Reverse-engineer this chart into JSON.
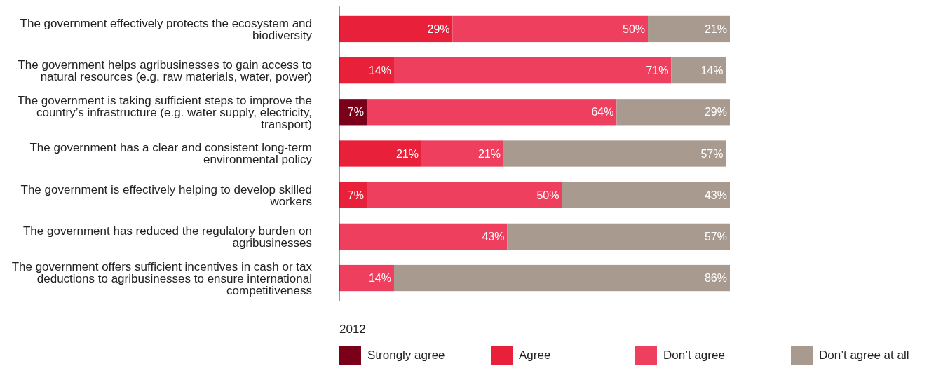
{
  "chart_data": {
    "type": "bar",
    "orientation": "horizontal",
    "stacked": true,
    "categories": [
      "The government effectively protects the ecosystem and biodiversity",
      "The government helps agribusinesses to gain access to natural resources (e.g. raw materials, water, power)",
      "The government is taking sufficient steps to improve the country’s infrastructure (e.g. water supply, electricity, transport)",
      "The government has a clear and consistent long-term environmental policy",
      "The government is effectively helping to develop skilled workers",
      "The government has reduced the regulatory burden on agribusinesses",
      "The government offers sufficient incentives in cash or tax deductions to agribusinesses to ensure international competitiveness"
    ],
    "series": [
      {
        "name": "Strongly agree",
        "color": "#7a0019",
        "values": [
          null,
          null,
          7,
          null,
          null,
          null,
          null
        ],
        "value_labels": [
          null,
          null,
          "7%",
          null,
          null,
          null,
          null
        ]
      },
      {
        "name": "Agree",
        "color": "#e8203a",
        "values": [
          29,
          14,
          null,
          21,
          7,
          null,
          null
        ],
        "value_labels": [
          "29%",
          "14%",
          null,
          "21%",
          "7%",
          null,
          null
        ]
      },
      {
        "name": "Don’t agree",
        "color": "#ef3f5e",
        "values": [
          50,
          71,
          64,
          21,
          50,
          43,
          14
        ],
        "value_labels": [
          "50%",
          "71%",
          "64%",
          "21%",
          "50%",
          "43%",
          "14%"
        ]
      },
      {
        "name": "Don’t agree at all",
        "color": "#a89a8f",
        "values": [
          21,
          14,
          29,
          57,
          43,
          57,
          86
        ],
        "value_labels": [
          "21%",
          "14%",
          "29%",
          "57%",
          "43%",
          "57%",
          "86%"
        ]
      }
    ],
    "xlim": [
      0,
      100
    ],
    "tick_labels": "y",
    "legend": "bottom",
    "legend_title": "2012"
  }
}
